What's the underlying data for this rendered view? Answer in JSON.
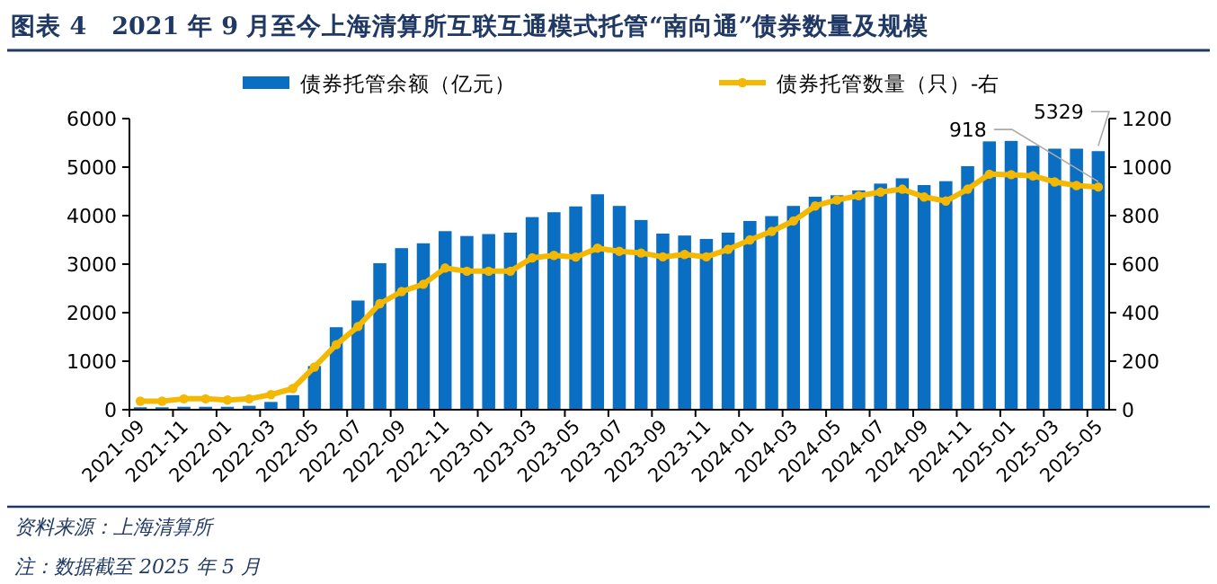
{
  "chart_data": {
    "type": "bar",
    "title": "图表 4　2021 年 9 月至今上海清算所互联互通模式托管“南向通”债券数量及规模",
    "categories": [
      "2021-09",
      null,
      "2021-11",
      null,
      "2022-01",
      null,
      "2022-03",
      null,
      "2022-05",
      null,
      "2022-07",
      null,
      "2022-09",
      null,
      "2022-11",
      null,
      "2023-01",
      null,
      "2023-03",
      null,
      "2023-05",
      null,
      "2023-07",
      null,
      "2023-09",
      null,
      "2023-11",
      null,
      "2024-01",
      null,
      "2024-03",
      null,
      "2024-05",
      null,
      "2024-07",
      null,
      "2024-09",
      null,
      "2024-11",
      null,
      "2025-01",
      null,
      "2025-03",
      null,
      "2025-05"
    ],
    "series": [
      {
        "name": "债券托管余额（亿元）",
        "color": "#0a6fc2",
        "values": [
          50,
          50,
          60,
          60,
          60,
          80,
          160,
          300,
          900,
          1700,
          2250,
          3020,
          3330,
          3430,
          3680,
          3580,
          3620,
          3650,
          3970,
          4070,
          4190,
          4440,
          4200,
          3910,
          3630,
          3590,
          3520,
          3650,
          3890,
          3990,
          4200,
          4390,
          4420,
          4520,
          4660,
          4770,
          4630,
          4710,
          5020,
          5530,
          5540,
          5440,
          5380,
          5380,
          5329
        ],
        "value_labels": [
          null,
          null,
          null,
          null,
          null,
          null,
          null,
          null,
          null,
          null,
          null,
          null,
          null,
          null,
          null,
          null,
          null,
          null,
          null,
          null,
          null,
          null,
          null,
          null,
          null,
          null,
          null,
          null,
          null,
          null,
          null,
          null,
          null,
          null,
          null,
          null,
          null,
          null,
          null,
          null,
          null,
          null,
          null,
          null,
          "5329"
        ]
      },
      {
        "name": "债券托管数量（只）-右",
        "type": "line",
        "axis": "y2",
        "color": "#f5b800",
        "values": [
          35,
          35,
          45,
          45,
          40,
          45,
          62,
          87,
          176,
          268,
          343,
          437,
          487,
          517,
          584,
          571,
          571,
          571,
          626,
          636,
          629,
          666,
          653,
          646,
          630,
          640,
          630,
          661,
          700,
          735,
          778,
          840,
          865,
          882,
          897,
          909,
          877,
          860,
          909,
          971,
          969,
          964,
          939,
          924,
          918
        ],
        "value_labels": [
          null,
          null,
          null,
          null,
          null,
          null,
          null,
          null,
          null,
          null,
          null,
          null,
          null,
          null,
          null,
          null,
          null,
          null,
          null,
          null,
          null,
          null,
          null,
          null,
          null,
          null,
          null,
          null,
          null,
          null,
          null,
          null,
          null,
          null,
          null,
          null,
          null,
          null,
          null,
          null,
          null,
          null,
          null,
          null,
          "918"
        ]
      }
    ],
    "ylim": [
      0,
      6000
    ],
    "yticks": [
      0,
      1000,
      2000,
      3000,
      4000,
      5000,
      6000
    ],
    "y2lim": [
      0,
      1200
    ],
    "y2ticks": [
      0,
      200,
      400,
      600,
      800,
      1000,
      1200
    ],
    "legend": "top",
    "marker": "circle",
    "annotations": [
      "资料来源：上海清算所",
      "注：数据截至 2025 年 5 月"
    ]
  }
}
